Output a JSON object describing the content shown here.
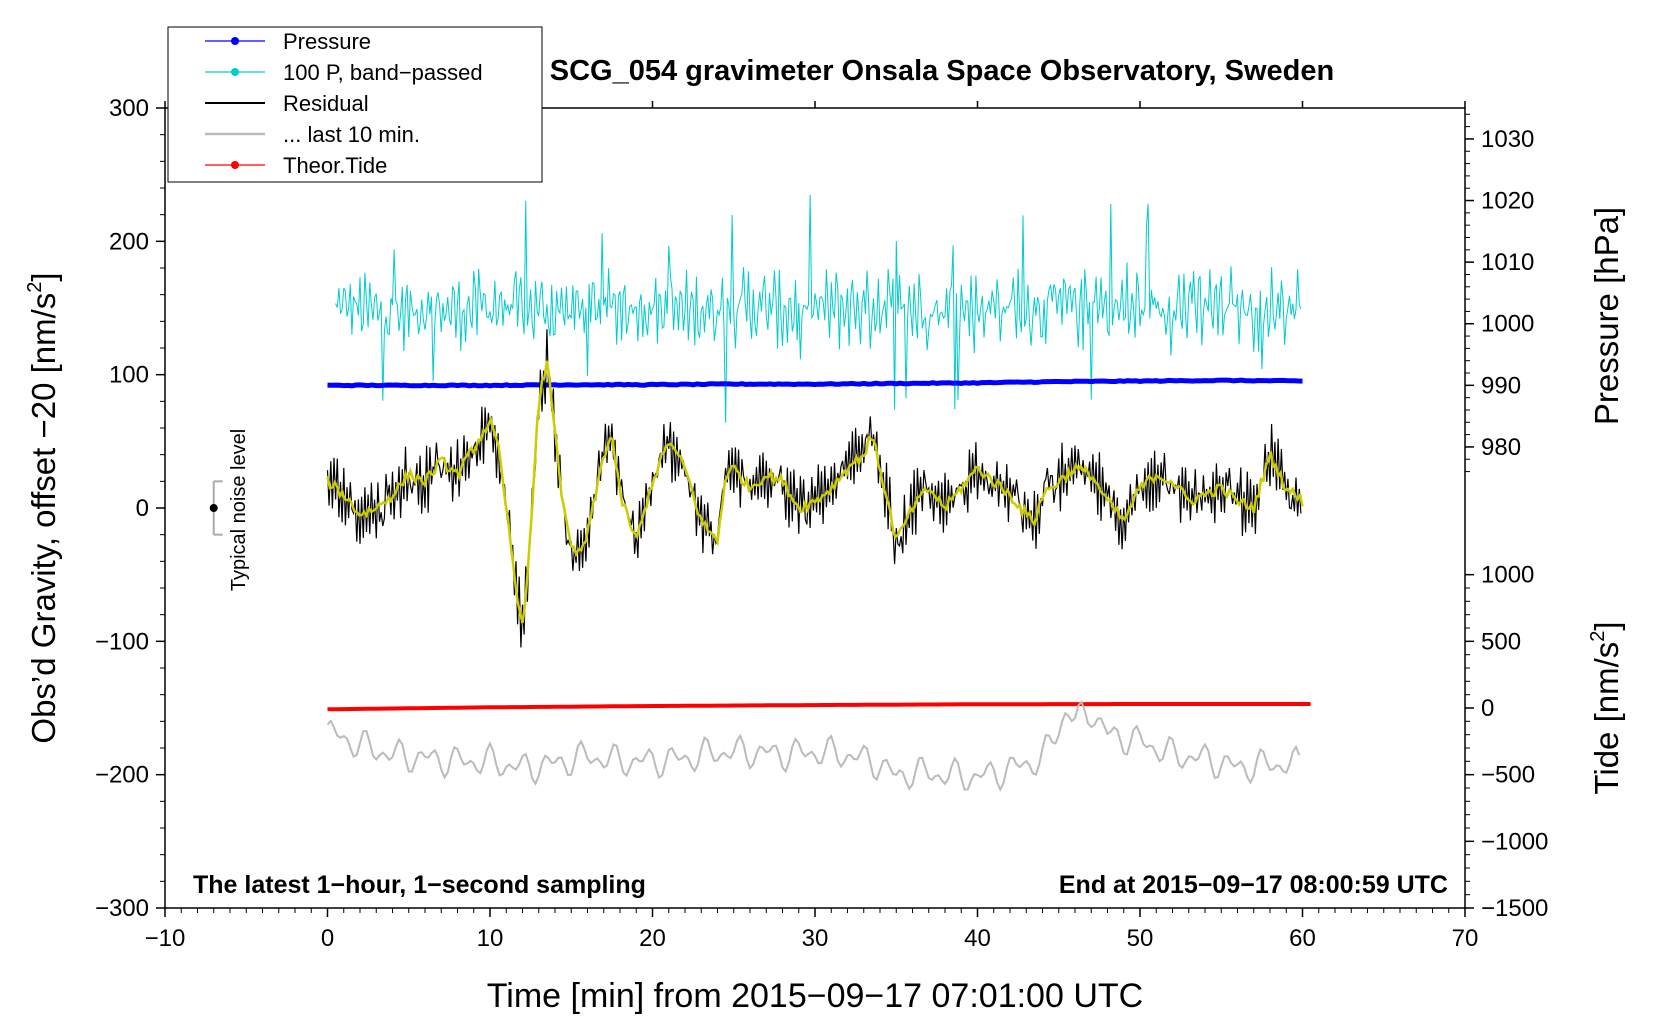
{
  "chart_data": {
    "type": "line",
    "title": "SCG_054 gravimeter Onsala Space Observatory, Sweden",
    "xlabel": "Time [min] from 2015−09−17 07:01:00 UTC",
    "ylabel": "Obs’d Gravity, offset −20 [nm/s2]",
    "ylabel_main": "Obs’d Gravity, offset −20 [nm/s",
    "ylabel_sup": "2",
    "ylabel_end": "]",
    "y2label": "Pressure [hPa]",
    "y3label": "Tide [nm/s2]",
    "y3label_main": "Tide [nm/s",
    "y3label_sup": "2",
    "y3label_end": "]",
    "xlim": [
      -10,
      70
    ],
    "ylim": [
      -300,
      300
    ],
    "xticks": [
      -10,
      0,
      10,
      20,
      30,
      40,
      50,
      60,
      70
    ],
    "xtick_labels": [
      "−10",
      "0",
      "10",
      "20",
      "30",
      "40",
      "50",
      "60",
      "70"
    ],
    "yticks": [
      -300,
      -200,
      -100,
      0,
      100,
      200,
      300
    ],
    "ytick_labels": [
      "−300",
      "−200",
      "−100",
      "0",
      "100",
      "200",
      "300"
    ],
    "pressure_axis": {
      "ticks": [
        980,
        990,
        1000,
        1010,
        1020,
        1030
      ],
      "tick_labels": [
        "980",
        "990",
        "1000",
        "1010",
        "1020",
        "1030"
      ],
      "mapping": {
        "hPa_a": 990,
        "gravity_a": 92,
        "hPa_b": 1030,
        "gravity_b": 276.8
      }
    },
    "tide_axis": {
      "ticks": [
        -1500,
        -1000,
        -500,
        0,
        500,
        1000
      ],
      "tick_labels": [
        "−1500",
        "−1000",
        "−500",
        "0",
        "500",
        "1000"
      ],
      "mapping": {
        "tide_a": -1500,
        "gravity_a": -300,
        "tide_b": 1000,
        "gravity_b": -50
      }
    },
    "legend": [
      {
        "label": "Pressure",
        "color": "#0000ff",
        "marker": true
      },
      {
        "label": "100 P, band−passed",
        "color": "#00cccc",
        "marker": true
      },
      {
        "label": "Residual",
        "color": "#000000",
        "marker": false
      },
      {
        "label": "... last 10 min.",
        "color": "#bbbbbb",
        "marker": false
      },
      {
        "label": "Theor.Tide",
        "color": "#ff0000",
        "marker": true
      }
    ],
    "legend_position": "top-left",
    "noise_bar": {
      "label": "Typical noise level",
      "x": -7,
      "y": 0,
      "error": 20,
      "color": "#aaaaaa"
    },
    "annotations": {
      "bottom_left": "The latest 1−hour, 1−second sampling",
      "bottom_right": "End at 2015−09−17 08:00:59 UTC"
    },
    "series": [
      {
        "name": "Pressure",
        "color": "#0000ff",
        "axis": "pressure_hPa",
        "x": [
          0,
          5,
          10,
          15,
          20,
          25,
          30,
          35,
          40,
          45,
          50,
          55,
          60
        ],
        "values": [
          990.0,
          990.0,
          990.0,
          990.1,
          990.1,
          990.2,
          990.2,
          990.3,
          990.4,
          990.6,
          990.7,
          990.8,
          990.7
        ]
      },
      {
        "name": "Theor.Tide",
        "color": "#ff0000",
        "axis": "tide_nm_s2",
        "x": [
          0,
          10,
          20,
          30,
          40,
          50,
          60.5
        ],
        "values": [
          -10,
          5,
          15,
          22,
          28,
          30,
          30
        ]
      },
      {
        "name": "100 P, band−passed",
        "color": "#00cccc",
        "axis": "gravity",
        "x": [
          0,
          2,
          4,
          6,
          8,
          10,
          12,
          14,
          16,
          18,
          20,
          22,
          24,
          26,
          28,
          30,
          32,
          34,
          36,
          38,
          40,
          42,
          44,
          46,
          48,
          50,
          52,
          54,
          56,
          58,
          60
        ],
        "values": [
          155,
          150,
          145,
          150,
          148,
          152,
          150,
          148,
          150,
          152,
          150,
          148,
          150,
          152,
          148,
          150,
          150,
          152,
          150,
          148,
          150,
          152,
          150,
          152,
          150,
          150,
          152,
          150,
          150,
          150,
          155
        ],
        "amplitude": [
          10,
          22,
          22,
          24,
          24,
          25,
          24,
          25,
          24,
          24,
          24,
          25,
          25,
          26,
          25,
          25,
          26,
          28,
          27,
          26,
          27,
          27,
          28,
          28,
          28,
          29,
          29,
          28,
          28,
          28,
          20
        ]
      },
      {
        "name": "Residual (smoothed)",
        "color": "#cccc00",
        "axis": "gravity",
        "x": [
          0,
          1,
          2,
          3,
          4,
          5,
          6,
          7,
          8,
          9,
          10,
          10.5,
          11,
          11.5,
          12,
          12.5,
          13,
          13.5,
          14,
          14.5,
          15,
          15.5,
          16,
          17,
          17.5,
          18,
          19,
          20,
          21,
          22,
          23,
          24,
          24.5,
          25,
          26,
          27,
          28,
          29,
          30,
          31,
          32,
          33,
          33.5,
          34,
          35,
          36,
          37,
          38,
          39,
          40,
          41,
          42,
          43,
          43.5,
          44,
          45,
          46,
          47,
          48,
          49,
          50,
          51,
          52,
          53,
          54,
          55,
          56,
          57,
          57.5,
          58,
          59,
          60
        ],
        "values": [
          20,
          10,
          -5,
          0,
          10,
          25,
          20,
          35,
          25,
          45,
          65,
          45,
          0,
          -50,
          -90,
          -20,
          80,
          110,
          60,
          0,
          -30,
          -35,
          -20,
          40,
          55,
          10,
          -25,
          20,
          50,
          30,
          -10,
          -25,
          25,
          30,
          15,
          25,
          20,
          0,
          5,
          15,
          30,
          40,
          55,
          30,
          -25,
          0,
          15,
          0,
          15,
          30,
          20,
          10,
          -5,
          -10,
          10,
          20,
          30,
          25,
          5,
          -10,
          15,
          25,
          20,
          5,
          10,
          15,
          5,
          0,
          20,
          40,
          15,
          5
        ]
      },
      {
        "name": "Residual",
        "color": "#000000",
        "axis": "gravity",
        "x": [
          0,
          1,
          2,
          3,
          4,
          5,
          6,
          7,
          8,
          9,
          10,
          10.5,
          11,
          11.5,
          12,
          12.5,
          13,
          13.5,
          14,
          14.5,
          15,
          15.5,
          16,
          17,
          17.5,
          18,
          19,
          20,
          21,
          22,
          23,
          24,
          24.5,
          25,
          26,
          27,
          28,
          29,
          30,
          31,
          32,
          33,
          33.5,
          34,
          35,
          36,
          37,
          38,
          39,
          40,
          41,
          42,
          43,
          43.5,
          44,
          45,
          46,
          47,
          48,
          49,
          50,
          51,
          52,
          53,
          54,
          55,
          56,
          57,
          57.5,
          58,
          59,
          60
        ],
        "values": [
          20,
          10,
          -5,
          0,
          10,
          25,
          20,
          35,
          25,
          45,
          65,
          45,
          0,
          -50,
          -90,
          -20,
          80,
          110,
          60,
          0,
          -30,
          -35,
          -20,
          40,
          55,
          10,
          -25,
          20,
          50,
          30,
          -10,
          -25,
          25,
          30,
          15,
          25,
          20,
          0,
          5,
          15,
          30,
          40,
          55,
          30,
          -25,
          0,
          15,
          0,
          15,
          30,
          20,
          10,
          -5,
          -10,
          10,
          20,
          30,
          25,
          5,
          -10,
          15,
          25,
          20,
          5,
          10,
          15,
          5,
          0,
          20,
          40,
          15,
          5
        ],
        "noise_amplitude": 22
      },
      {
        "name": "... last 10 min.",
        "color": "#bbbbbb",
        "axis": "gravity",
        "x": [
          0,
          2,
          4,
          6,
          8,
          10,
          12,
          14,
          16,
          18,
          20,
          22,
          24,
          26,
          28,
          30,
          32,
          34,
          35,
          36,
          38,
          40,
          42,
          44,
          45,
          45.5,
          46,
          47,
          48,
          50,
          52,
          54,
          56,
          58,
          60
        ],
        "values": [
          -168,
          -178,
          -185,
          -188,
          -190,
          -190,
          -195,
          -192,
          -186,
          -190,
          -190,
          -188,
          -183,
          -183,
          -185,
          -183,
          -185,
          -192,
          -202,
          -198,
          -200,
          -202,
          -196,
          -188,
          -165,
          -150,
          -160,
          -152,
          -170,
          -175,
          -185,
          -188,
          -195,
          -192,
          -192
        ],
        "wiggle": 7
      }
    ]
  }
}
